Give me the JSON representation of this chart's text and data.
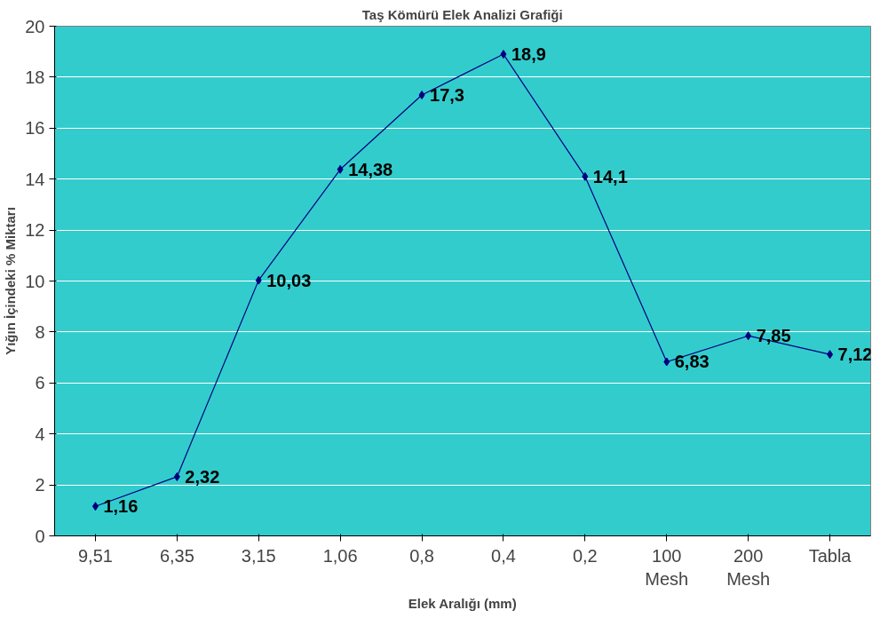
{
  "chart_data": {
    "type": "line",
    "title": "Taş Kömürü Elek Analizi Grafiği",
    "xlabel": "Elek Aralığı (mm)",
    "ylabel": "Yığın İçindeki % Miktarı",
    "categories": [
      "9,51",
      "6,35",
      "3,15",
      "1,06",
      "0,8",
      "0,4",
      "0,2",
      "100\nMesh",
      "200\nMesh",
      "Tabla"
    ],
    "series": [
      {
        "color": "#000080",
        "values": [
          1.16,
          2.32,
          10.03,
          14.38,
          17.3,
          18.9,
          14.1,
          6.83,
          7.85,
          7.12
        ],
        "value_labels": [
          "1,16",
          "2,32",
          "10,03",
          "14,38",
          "17,3",
          "18,9",
          "14,1",
          "6,83",
          "7,85",
          "7,12"
        ]
      }
    ],
    "ylim": [
      0,
      20
    ],
    "yticks": [
      0,
      2,
      4,
      6,
      8,
      10,
      12,
      14,
      16,
      18,
      20
    ],
    "grid": "y",
    "legend": false,
    "marker": "diamond",
    "line_style": "solid"
  }
}
